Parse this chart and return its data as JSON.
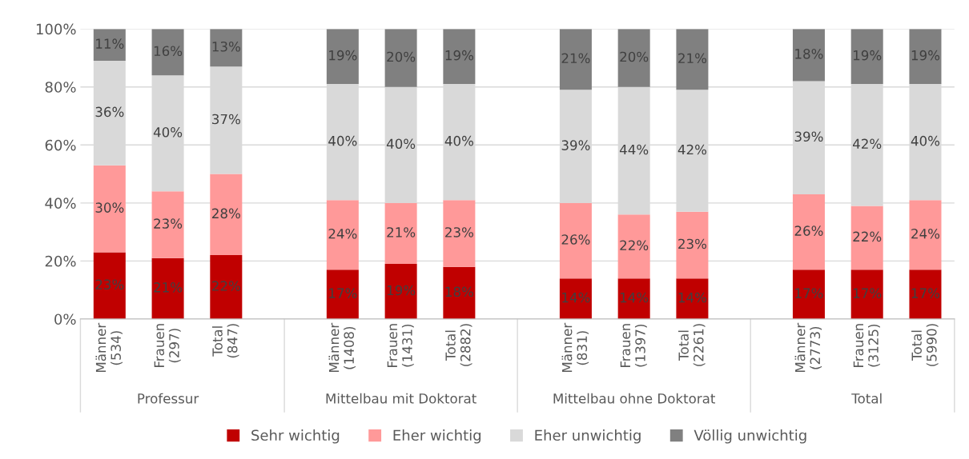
{
  "chart_data": {
    "type": "bar",
    "stacked": true,
    "categories": [
      "Männer\n(534)",
      "Frauen\n(297)",
      "Total\n(847)",
      null,
      "Männer\n(1408)",
      "Frauen\n(1431)",
      "Total\n(2882)",
      null,
      "Männer\n(831)",
      "Frauen\n(1397)",
      "Total\n(2261)",
      null,
      "Männer\n(2773)",
      "Frauen\n(3125)",
      "Total\n(5990)"
    ],
    "series": [
      {
        "name": "Sehr wichtig",
        "color": "#c00000",
        "values": [
          23,
          21,
          22,
          null,
          17,
          19,
          18,
          null,
          14,
          14,
          14,
          null,
          17,
          17,
          17
        ],
        "value_labels": [
          "23%",
          "21%",
          "22%",
          null,
          "17%",
          "19%",
          "18%",
          null,
          "14%",
          "14%",
          "14%",
          null,
          "17%",
          "17%",
          "17%"
        ]
      },
      {
        "name": "Eher wichtig",
        "color": "#ff9999",
        "values": [
          30,
          23,
          28,
          null,
          24,
          21,
          23,
          null,
          26,
          22,
          23,
          null,
          26,
          22,
          24
        ],
        "value_labels": [
          "30%",
          "23%",
          "28%",
          null,
          "24%",
          "21%",
          "23%",
          null,
          "26%",
          "22%",
          "23%",
          null,
          "26%",
          "22%",
          "24%"
        ]
      },
      {
        "name": "Eher unwichtig",
        "color": "#d9d9d9",
        "values": [
          36,
          40,
          37,
          null,
          40,
          40,
          40,
          null,
          39,
          44,
          42,
          null,
          39,
          42,
          40
        ],
        "value_labels": [
          "36%",
          "40%",
          "37%",
          null,
          "40%",
          "40%",
          "40%",
          null,
          "39%",
          "44%",
          "42%",
          null,
          "39%",
          "42%",
          "40%"
        ]
      },
      {
        "name": "Völlig unwichtig",
        "color": "#808080",
        "values": [
          11,
          16,
          13,
          null,
          19,
          20,
          19,
          null,
          21,
          20,
          21,
          null,
          18,
          19,
          19
        ],
        "value_labels": [
          "11%",
          "16%",
          "13%",
          null,
          "19%",
          "20%",
          "19%",
          null,
          "21%",
          "20%",
          "21%",
          null,
          "18%",
          "19%",
          "19%"
        ]
      }
    ],
    "annotations": [
      "Professur",
      "Mittelbau mit Doktorat",
      "Mittelbau ohne Doktorat",
      "Total"
    ],
    "ylim": [
      0,
      100
    ],
    "yticks": [
      {
        "value": 0,
        "label": "0%"
      },
      {
        "value": 20,
        "label": "20%"
      },
      {
        "value": 40,
        "label": "40%"
      },
      {
        "value": 60,
        "label": "60%"
      },
      {
        "value": 80,
        "label": "80%"
      },
      {
        "value": 100,
        "label": "100%"
      }
    ],
    "grid": "y",
    "legend": "bottom"
  }
}
